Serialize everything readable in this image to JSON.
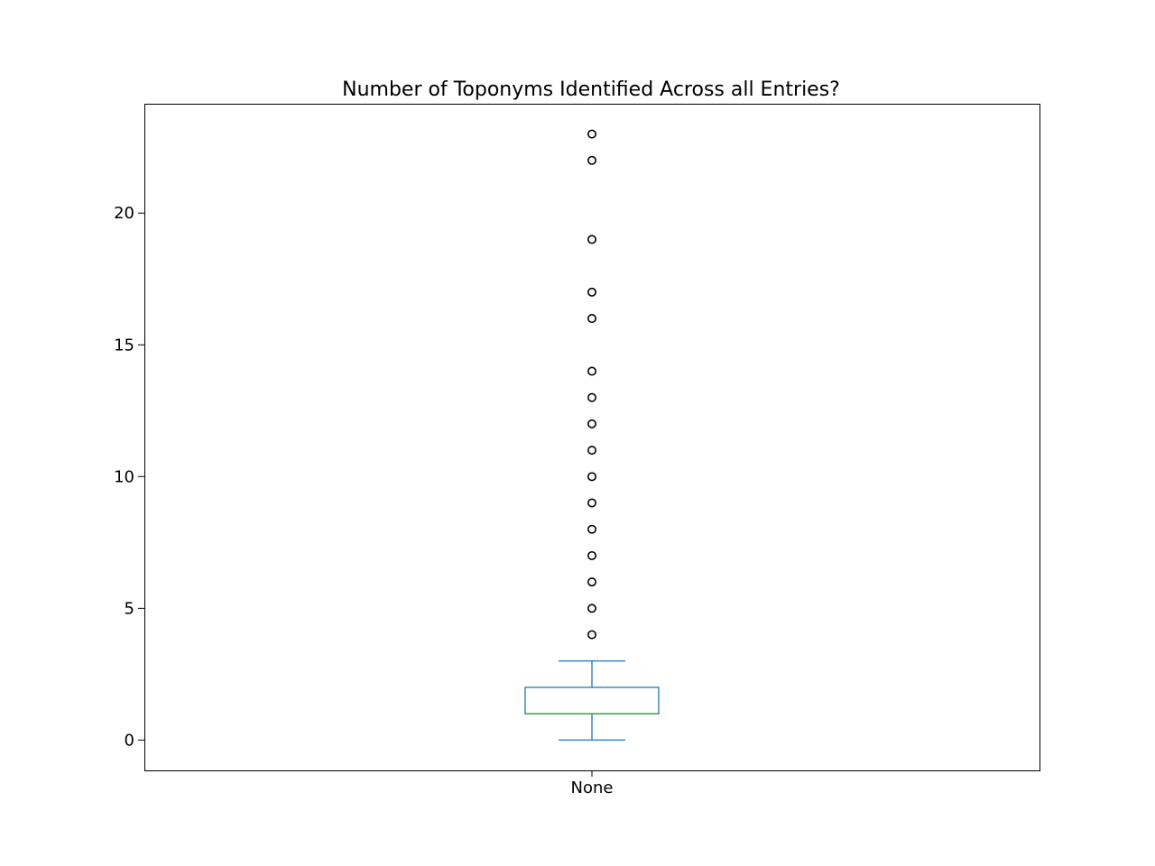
{
  "chart_data": {
    "type": "boxplot",
    "title": "Number of Toponyms Identified Across all Entries?",
    "xlabel": "",
    "ylabel": "",
    "categories": [
      "None"
    ],
    "ylim": [
      -1.15,
      24.15
    ],
    "y_ticks": [
      0,
      5,
      10,
      15,
      20
    ],
    "grid": false,
    "legend": "none",
    "box": {
      "whisker_low": 0,
      "q1": 1,
      "median": 1,
      "q3": 2,
      "whisker_high": 3
    },
    "outliers": [
      4,
      5,
      6,
      7,
      8,
      9,
      10,
      11,
      12,
      13,
      14,
      16,
      17,
      19,
      22,
      23
    ],
    "colors": {
      "box": "#1f77b4",
      "whisker": "#1f77b4",
      "cap": "#1f77b4",
      "median": "#2ca02c",
      "outlier": "#000000"
    }
  }
}
